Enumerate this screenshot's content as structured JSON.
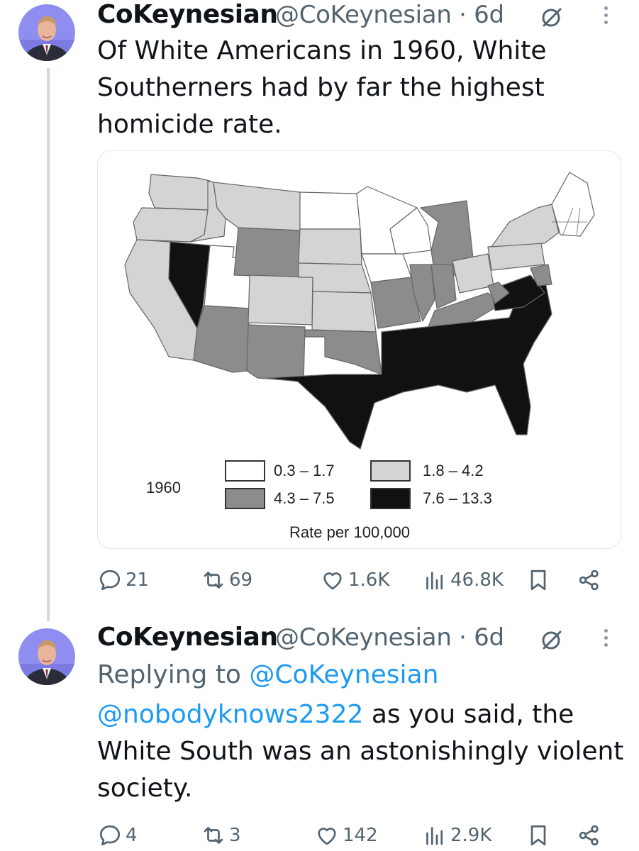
{
  "tweets": [
    {
      "author": "CoKeynesian",
      "handle_time": "@CoKeynesian · 6d",
      "text": "Of White Americans in 1960, White Southerners had by far the highest homicide rate.",
      "media": {
        "legend_year": "1960",
        "legend": [
          {
            "label": "0.3 – 1.7",
            "color": "#ffffff"
          },
          {
            "label": "1.8 – 4.2",
            "color": "#d4d4d4"
          },
          {
            "label": "4.3 – 7.5",
            "color": "#8c8c8c"
          },
          {
            "label": "7.6 – 13.3",
            "color": "#111111"
          }
        ],
        "caption": "Rate per 100,000"
      },
      "stats": {
        "replies": "21",
        "reposts": "69",
        "likes": "1.6K",
        "views": "46.8K"
      }
    },
    {
      "author": "CoKeynesian",
      "handle_time": "@CoKeynesian · 6d",
      "replying_prefix": "Replying to ",
      "replying_to": "@CoKeynesian",
      "mention": "@nobodyknows2322",
      "text_after_mention": " as you said, the",
      "text_line2": "White South was an astonishingly violent",
      "text_line3": "society.",
      "stats": {
        "replies": "4",
        "reposts": "3",
        "likes": "142",
        "views": "2.9K"
      }
    }
  ],
  "colors": {
    "accent": "#1d9bf0",
    "muted": "#536471",
    "divider": "#cfd9de"
  },
  "icons": [
    "reply-icon",
    "repost-icon",
    "like-icon",
    "views-icon",
    "bookmark-icon",
    "share-icon",
    "more-icon",
    "grok-icon"
  ]
}
